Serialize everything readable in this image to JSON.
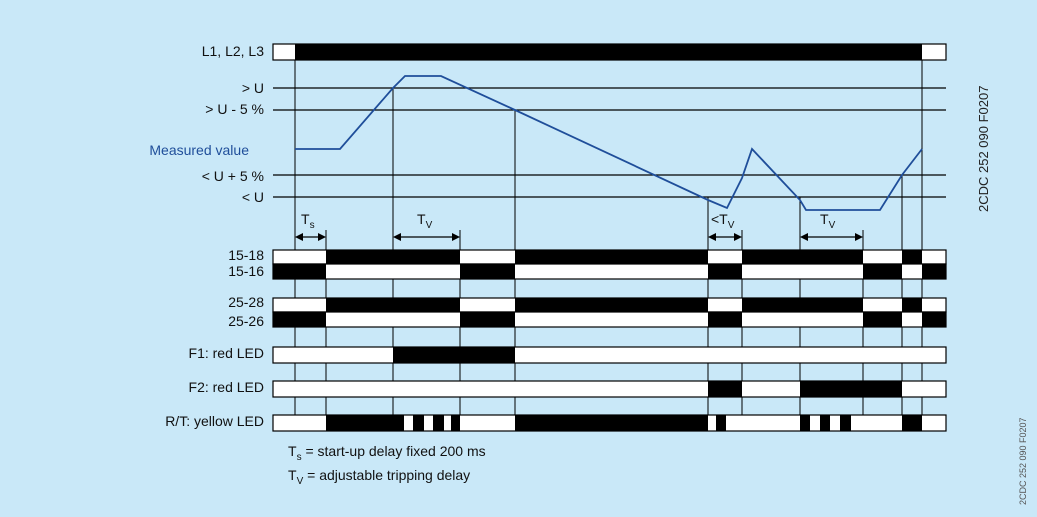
{
  "colors": {
    "background": "#c9e8f8",
    "measured_curve": "#1f4e9a",
    "measured_label": "#1f4e9a",
    "bar_on": "#000000",
    "bar_off": "#ffffff"
  },
  "levels": [
    {
      "id": "upper",
      "label": "> U"
    },
    {
      "id": "upper-hyst",
      "label": "> U - 5 %"
    },
    {
      "id": "measured",
      "label": "Measured value"
    },
    {
      "id": "lower-hyst",
      "label": "< U + 5 %"
    },
    {
      "id": "lower",
      "label": "< U"
    }
  ],
  "supply_label": "L1, L2, L3",
  "delays": {
    "ts": {
      "main": "T",
      "sub": "s"
    },
    "tv1": {
      "main": "T",
      "sub": "V"
    },
    "tv2": {
      "main": "<T",
      "sub": "V"
    },
    "tv3": {
      "main": "T",
      "sub": "V"
    }
  },
  "contacts": [
    {
      "id": "c1",
      "label_a": "15-18",
      "label_b": "15-16"
    },
    {
      "id": "c2",
      "label_a": "25-28",
      "label_b": "25-26"
    }
  ],
  "leds": [
    {
      "id": "f1",
      "label": "F1: red LED"
    },
    {
      "id": "f2",
      "label": "F2: red LED"
    },
    {
      "id": "rt",
      "label": "R/T: yellow LED"
    }
  ],
  "legend": {
    "ts": {
      "symbol": "T",
      "sub": "s",
      "text": " = start-up delay fixed 200 ms"
    },
    "tv": {
      "symbol": "T",
      "sub": "V",
      "text": " = adjustable tripping delay"
    }
  },
  "doc_code": "2CDC 252 090 F0207"
}
